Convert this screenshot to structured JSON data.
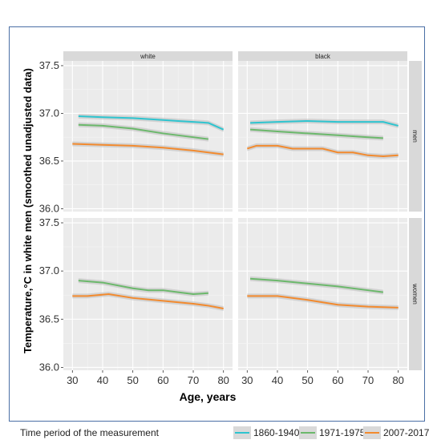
{
  "chart_data": {
    "type": "line",
    "ylabel": "Temperature,°C in white men (smoothed unadjusted data)",
    "xlabel": "Age, years",
    "xlim": [
      27,
      83
    ],
    "ylim": [
      35.97,
      37.55
    ],
    "x_ticks": [
      30,
      40,
      50,
      60,
      70,
      80
    ],
    "y_ticks": [
      36.0,
      36.5,
      37.0,
      37.5
    ],
    "y_tick_labels": [
      "36.0",
      "36.5",
      "37.0",
      "37.5"
    ],
    "columns": [
      "white",
      "black"
    ],
    "rows": [
      "men",
      "women"
    ],
    "grid": true,
    "legend_title": "Time period of the measurement",
    "legend_position": "bottom",
    "series_styles": [
      {
        "name": "1860-1940",
        "color": "#2ec4cf"
      },
      {
        "name": "1971-1975",
        "color": "#6bb86b"
      },
      {
        "name": "2007-2017",
        "color": "#f28a2e"
      }
    ],
    "panels": [
      {
        "row": "men",
        "column": "white",
        "series": [
          {
            "name": "1860-1940",
            "x": [
              32,
              40,
              50,
              60,
              65,
              70,
              75,
              80
            ],
            "y": [
              36.97,
              36.96,
              36.95,
              36.93,
              36.92,
              36.91,
              36.9,
              36.83
            ]
          },
          {
            "name": "1971-1975",
            "x": [
              32,
              40,
              50,
              60,
              70,
              75
            ],
            "y": [
              36.88,
              36.87,
              36.84,
              36.79,
              36.75,
              36.73
            ]
          },
          {
            "name": "2007-2017",
            "x": [
              30,
              40,
              50,
              60,
              70,
              80
            ],
            "y": [
              36.68,
              36.67,
              36.66,
              36.64,
              36.61,
              36.57
            ]
          }
        ]
      },
      {
        "row": "men",
        "column": "black",
        "series": [
          {
            "name": "1860-1940",
            "x": [
              31,
              40,
              50,
              60,
              70,
              75,
              80
            ],
            "y": [
              36.9,
              36.91,
              36.92,
              36.91,
              36.91,
              36.91,
              36.87
            ]
          },
          {
            "name": "1971-1975",
            "x": [
              31,
              40,
              50,
              60,
              70,
              75
            ],
            "y": [
              36.83,
              36.81,
              36.79,
              36.77,
              36.75,
              36.74
            ]
          },
          {
            "name": "2007-2017",
            "x": [
              30,
              33,
              40,
              45,
              50,
              55,
              60,
              65,
              70,
              75,
              80
            ],
            "y": [
              36.63,
              36.66,
              36.66,
              36.63,
              36.63,
              36.63,
              36.59,
              36.59,
              36.56,
              36.55,
              36.56
            ]
          }
        ]
      },
      {
        "row": "women",
        "column": "white",
        "series": [
          {
            "name": "1971-1975",
            "x": [
              32,
              40,
              50,
              55,
              60,
              65,
              70,
              75
            ],
            "y": [
              36.9,
              36.88,
              36.82,
              36.8,
              36.8,
              36.78,
              36.76,
              36.77
            ]
          },
          {
            "name": "2007-2017",
            "x": [
              30,
              35,
              42,
              50,
              60,
              70,
              75,
              80
            ],
            "y": [
              36.74,
              36.74,
              36.76,
              36.72,
              36.69,
              36.66,
              36.64,
              36.61
            ]
          }
        ]
      },
      {
        "row": "women",
        "column": "black",
        "series": [
          {
            "name": "1971-1975",
            "x": [
              31,
              40,
              50,
              60,
              70,
              75
            ],
            "y": [
              36.92,
              36.9,
              36.87,
              36.84,
              36.8,
              36.78
            ]
          },
          {
            "name": "2007-2017",
            "x": [
              30,
              40,
              50,
              60,
              70,
              80
            ],
            "y": [
              36.74,
              36.74,
              36.7,
              36.65,
              36.63,
              36.62
            ]
          }
        ]
      }
    ]
  }
}
